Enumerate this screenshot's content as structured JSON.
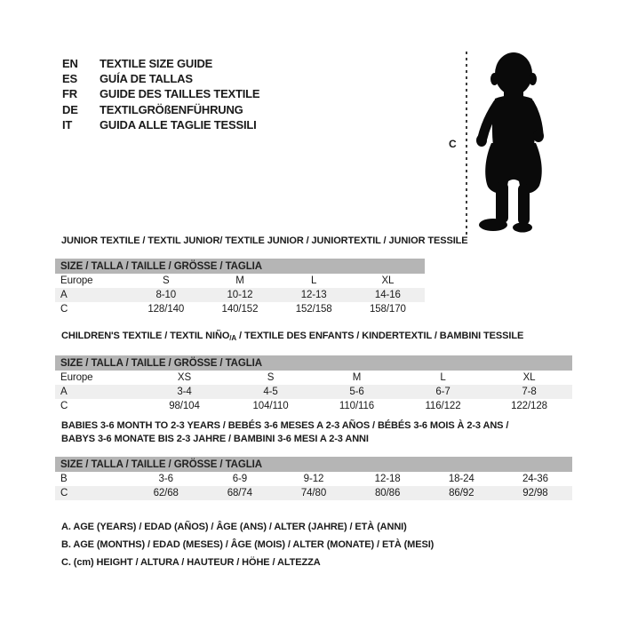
{
  "colors": {
    "background": "#ffffff",
    "text": "#1a1a1a",
    "table_header_bg": "#b5b5b5",
    "row_alt_bg": "#efefef",
    "silhouette": "#0a0a0a"
  },
  "languages": [
    {
      "code": "EN",
      "label": "TEXTILE SIZE GUIDE"
    },
    {
      "code": "ES",
      "label": "GUÍA DE TALLAS"
    },
    {
      "code": "FR",
      "label": "GUIDE DES TAILLES TEXTILE"
    },
    {
      "code": "DE",
      "label": "TEXTILGRÖßENFÜHRUNG"
    },
    {
      "code": "IT",
      "label": "GUIDA ALLE TAGLIE TESSILI"
    }
  ],
  "figure": {
    "height_label": "C"
  },
  "sections": [
    {
      "title_lines": [
        [
          {
            "t": "JUNIOR TEXTILE / TEXTIL JUNIOR/ TEXTILE JUNIOR / JUNIORTEXTIL / JUNIOR TESSILE"
          }
        ]
      ],
      "table": {
        "header": "SIZE / TALLA / TAILLE / GRÖSSE / TAGLIA",
        "rows": [
          {
            "label": "Europe",
            "values": [
              "S",
              "M",
              "L",
              "XL"
            ]
          },
          {
            "label": "A",
            "values": [
              "8-10",
              "10-12",
              "12-13",
              "14-16"
            ]
          },
          {
            "label": "C",
            "values": [
              "128/140",
              "140/152",
              "152/158",
              "158/170"
            ]
          }
        ]
      }
    },
    {
      "title_lines": [
        [
          {
            "t": "CHILDREN'S TEXTILE / TEXTIL NIÑO"
          },
          {
            "t": "/A",
            "sub": true
          },
          {
            "t": " / TEXTILE DES ENFANTS / KINDERTEXTIL / BAMBINI TESSILE"
          }
        ]
      ],
      "table": {
        "header": "SIZE / TALLA / TAILLE / GRÖSSE / TAGLIA",
        "rows": [
          {
            "label": "Europe",
            "values": [
              "XS",
              "S",
              "M",
              "L",
              "XL"
            ]
          },
          {
            "label": "A",
            "values": [
              "3-4",
              "4-5",
              "5-6",
              "6-7",
              "7-8"
            ]
          },
          {
            "label": "C",
            "values": [
              "98/104",
              "104/110",
              "110/116",
              "116/122",
              "122/128"
            ]
          }
        ]
      }
    },
    {
      "title_lines": [
        [
          {
            "t": "BABIES 3-6 MONTH TO 2-3 YEARS / BEBÉS 3-6 MESES A 2-3 AÑOS / BÉBÉS 3-6 MOIS À 2-3 ANS /"
          }
        ],
        [
          {
            "t": "BABYS 3-6 MONATE BIS 2-3 JAHRE / BAMBINI 3-6 MESI A 2-3 ANNI"
          }
        ]
      ],
      "table": {
        "header": "SIZE / TALLA / TAILLE / GRÖSSE / TAGLIA",
        "rows": [
          {
            "label": "B",
            "values": [
              "3-6",
              "6-9",
              "9-12",
              "12-18",
              "18-24",
              "24-36"
            ]
          },
          {
            "label": "C",
            "values": [
              "62/68",
              "68/74",
              "74/80",
              "80/86",
              "86/92",
              "92/98"
            ]
          }
        ]
      }
    }
  ],
  "footnotes": [
    "A. AGE (YEARS) / EDAD (AÑOS) / ÂGE (ANS) / ALTER (JAHRE) / ETÀ (ANNI)",
    "B. AGE (MONTHS) / EDAD (MESES) / ÂGE (MOIS) / ALTER (MONATE) / ETÀ (MESI)",
    "C. (cm) HEIGHT / ALTURA / HAUTEUR / HÖHE / ALTEZZA"
  ]
}
